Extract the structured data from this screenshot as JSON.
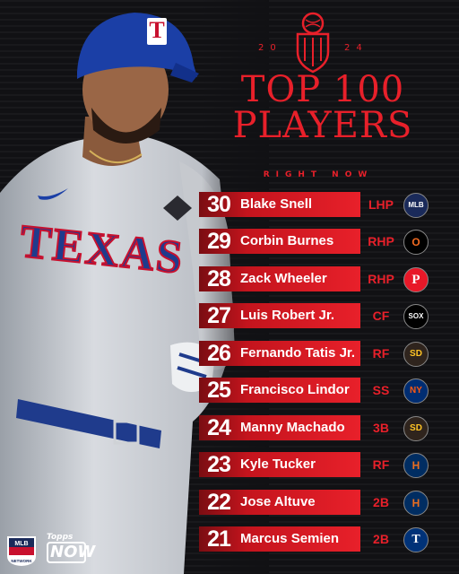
{
  "header": {
    "year_left": "20",
    "year_right": "24",
    "title_line1": "TOP 100",
    "title_line2": "PLAYERS",
    "subtitle": "RIGHT NOW"
  },
  "photo": {
    "jersey_text": "TEXAS",
    "helmet_letter": "T"
  },
  "players": [
    {
      "rank": "30",
      "name": "Blake Snell",
      "position": "LHP",
      "team_icon": "mlb-logo-icon",
      "logo_text": "MLB",
      "logo_bg": "#1a2a5a",
      "logo_fg": "#ffffff"
    },
    {
      "rank": "29",
      "name": "Corbin Burnes",
      "position": "RHP",
      "team_icon": "orioles-logo-icon",
      "logo_text": "O",
      "logo_bg": "#000000",
      "logo_fg": "#f26a21"
    },
    {
      "rank": "28",
      "name": "Zack Wheeler",
      "position": "RHP",
      "team_icon": "phillies-logo-icon",
      "logo_text": "P",
      "logo_bg": "#e81828",
      "logo_fg": "#ffffff"
    },
    {
      "rank": "27",
      "name": "Luis Robert Jr.",
      "position": "CF",
      "team_icon": "white-sox-logo-icon",
      "logo_text": "SOX",
      "logo_bg": "#000000",
      "logo_fg": "#ffffff"
    },
    {
      "rank": "26",
      "name": "Fernando Tatis Jr.",
      "position": "RF",
      "team_icon": "padres-logo-icon",
      "logo_text": "SD",
      "logo_bg": "#2f241d",
      "logo_fg": "#ffc425"
    },
    {
      "rank": "25",
      "name": "Francisco Lindor",
      "position": "SS",
      "team_icon": "mets-logo-icon",
      "logo_text": "NY",
      "logo_bg": "#002d72",
      "logo_fg": "#ff5910"
    },
    {
      "rank": "24",
      "name": "Manny Machado",
      "position": "3B",
      "team_icon": "padres-logo-icon",
      "logo_text": "SD",
      "logo_bg": "#2f241d",
      "logo_fg": "#ffc425"
    },
    {
      "rank": "23",
      "name": "Kyle Tucker",
      "position": "RF",
      "team_icon": "astros-logo-icon",
      "logo_text": "H",
      "logo_bg": "#002d62",
      "logo_fg": "#eb6e1f"
    },
    {
      "rank": "22",
      "name": "Jose Altuve",
      "position": "2B",
      "team_icon": "astros-logo-icon",
      "logo_text": "H",
      "logo_bg": "#002d62",
      "logo_fg": "#eb6e1f"
    },
    {
      "rank": "21",
      "name": "Marcus Semien",
      "position": "2B",
      "team_icon": "rangers-logo-icon",
      "logo_text": "T",
      "logo_bg": "#003278",
      "logo_fg": "#ffffff"
    }
  ],
  "footer": {
    "mlb_network_icon": "mlb-network-logo-icon",
    "topps_label": "Topps",
    "now_label": "NOW"
  },
  "colors": {
    "accent": "#e8202a",
    "background": "#111114",
    "text": "#ffffff"
  }
}
